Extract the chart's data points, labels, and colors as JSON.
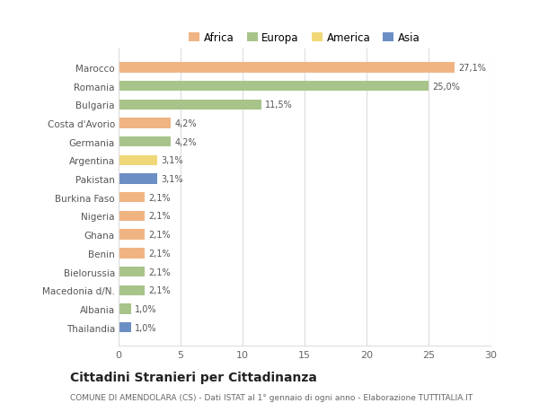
{
  "categories": [
    "Marocco",
    "Romania",
    "Bulgaria",
    "Costa d'Avorio",
    "Germania",
    "Argentina",
    "Pakistan",
    "Burkina Faso",
    "Nigeria",
    "Ghana",
    "Benin",
    "Bielorussia",
    "Macedonia d/N.",
    "Albania",
    "Thailandia"
  ],
  "values": [
    27.1,
    25.0,
    11.5,
    4.2,
    4.2,
    3.1,
    3.1,
    2.1,
    2.1,
    2.1,
    2.1,
    2.1,
    2.1,
    1.0,
    1.0
  ],
  "labels": [
    "27,1%",
    "25,0%",
    "11,5%",
    "4,2%",
    "4,2%",
    "3,1%",
    "3,1%",
    "2,1%",
    "2,1%",
    "2,1%",
    "2,1%",
    "2,1%",
    "2,1%",
    "1,0%",
    "1,0%"
  ],
  "colors": [
    "#F0B483",
    "#A8C48A",
    "#A8C48A",
    "#F0B483",
    "#A8C48A",
    "#F0D878",
    "#6B8EC4",
    "#F0B483",
    "#F0B483",
    "#F0B483",
    "#F0B483",
    "#A8C48A",
    "#A8C48A",
    "#A8C48A",
    "#6B8EC4"
  ],
  "legend_labels": [
    "Africa",
    "Europa",
    "America",
    "Asia"
  ],
  "legend_colors": [
    "#F0B483",
    "#A8C48A",
    "#F0D878",
    "#6B8EC4"
  ],
  "title": "Cittadini Stranieri per Cittadinanza",
  "subtitle": "COMUNE DI AMENDOLARA (CS) - Dati ISTAT al 1° gennaio di ogni anno - Elaborazione TUTTITALIA.IT",
  "xlim": [
    0,
    30
  ],
  "xticks": [
    0,
    5,
    10,
    15,
    20,
    25,
    30
  ],
  "background_color": "#ffffff",
  "bar_height": 0.55,
  "grid_color": "#dddddd"
}
